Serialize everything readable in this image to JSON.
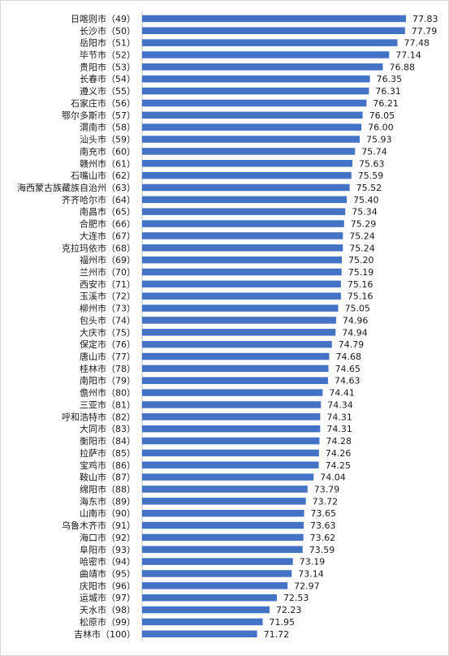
{
  "chart_data": {
    "type": "bar",
    "orientation": "horizontal",
    "title": "",
    "xlabel": "",
    "ylabel": "",
    "grid": false,
    "bar_color": "#4472C4",
    "xlim": [
      67,
      78.5
    ],
    "categories": [
      "日喀则市（49）",
      "长沙市（50）",
      "岳阳市（51）",
      "毕节市（52）",
      "贵阳市（53）",
      "长春市（54）",
      "遵义市（55）",
      "石家庄市（56）",
      "鄂尔多斯市（57）",
      "渭南市（58）",
      "汕头市（59）",
      "南充市（60）",
      "赣州市（61）",
      "石嘴山市（62）",
      "海西蒙古族藏族自治州（63）",
      "齐齐哈尔市（64）",
      "南昌市（65）",
      "合肥市（66）",
      "大连市（67）",
      "克拉玛依市（68）",
      "福州市（69）",
      "兰州市（70）",
      "西安市（71）",
      "玉溪市（72）",
      "柳州市（73）",
      "包头市（74）",
      "大庆市（75）",
      "保定市（76）",
      "唐山市（77）",
      "桂林市（78）",
      "南阳市（79）",
      "儋州市（80）",
      "三亚市（81）",
      "呼和浩特市（82）",
      "大同市（83）",
      "衡阳市（84）",
      "拉萨市（85）",
      "宝鸡市（86）",
      "鞍山市（87）",
      "绵阳市（88）",
      "海东市（89）",
      "山南市（90）",
      "乌鲁木齐市（91）",
      "海口市（92）",
      "阜阳市（93）",
      "哈密市（94）",
      "曲靖市（95）",
      "庆阳市（96）",
      "运城市（97）",
      "天水市（98）",
      "松原市（99）",
      "吉林市（100）"
    ],
    "values": [
      77.83,
      77.79,
      77.48,
      77.14,
      76.88,
      76.35,
      76.31,
      76.21,
      76.05,
      76.0,
      75.93,
      75.74,
      75.63,
      75.59,
      75.52,
      75.4,
      75.34,
      75.29,
      75.24,
      75.24,
      75.2,
      75.19,
      75.16,
      75.16,
      75.05,
      74.96,
      74.94,
      74.79,
      74.68,
      74.65,
      74.63,
      74.41,
      74.34,
      74.31,
      74.31,
      74.28,
      74.26,
      74.25,
      74.04,
      73.79,
      73.72,
      73.65,
      73.63,
      73.62,
      73.59,
      73.19,
      73.14,
      72.97,
      72.53,
      72.23,
      71.95,
      71.72
    ],
    "value_labels": [
      "77.83",
      "77.79",
      "77.48",
      "77.14",
      "76.88",
      "76.35",
      "76.31",
      "76.21",
      "76.05",
      "76.00",
      "75.93",
      "75.74",
      "75.63",
      "75.59",
      "75.52",
      "75.40",
      "75.34",
      "75.29",
      "75.24",
      "75.24",
      "75.20",
      "75.19",
      "75.16",
      "75.16",
      "75.05",
      "74.96",
      "74.94",
      "74.79",
      "74.68",
      "74.65",
      "74.63",
      "74.41",
      "74.34",
      "74.31",
      "74.31",
      "74.28",
      "74.26",
      "74.25",
      "74.04",
      "73.79",
      "73.72",
      "73.65",
      "73.63",
      "73.62",
      "73.59",
      "73.19",
      "73.14",
      "72.97",
      "72.53",
      "72.23",
      "71.95",
      "71.72"
    ]
  }
}
